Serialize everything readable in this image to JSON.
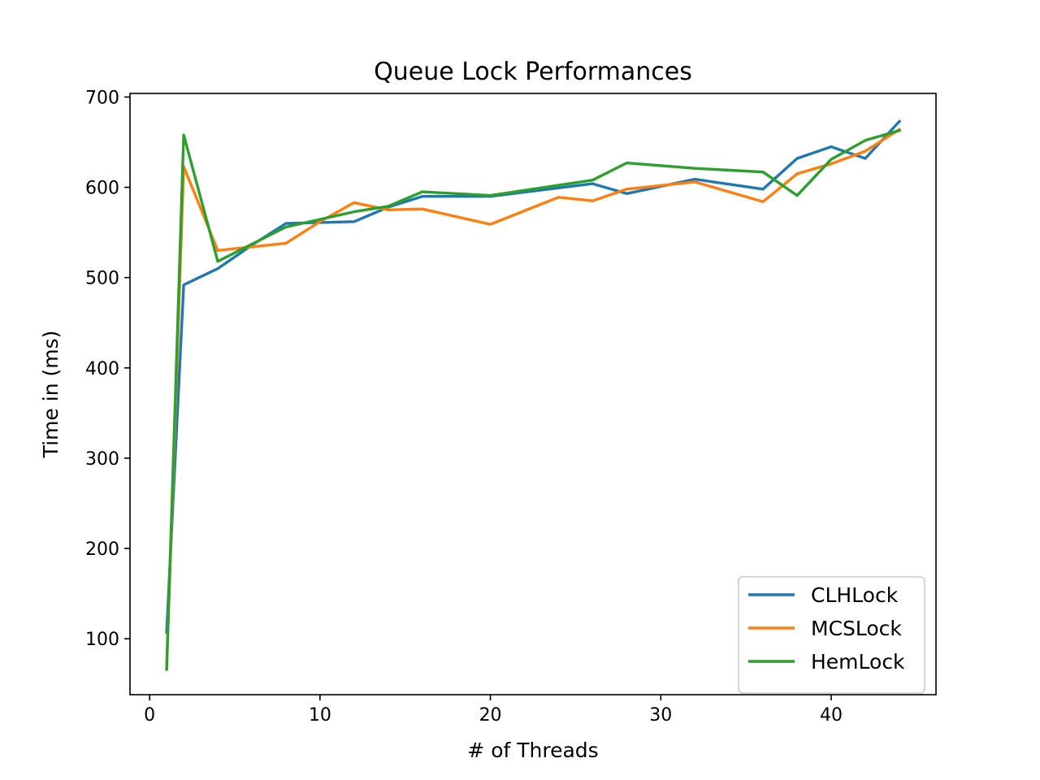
{
  "chart_data": {
    "type": "line",
    "title": "Queue Lock Performances",
    "xlabel": "# of Threads",
    "ylabel": "Time in (ms)",
    "xlim": [
      -1.15,
      46.15
    ],
    "ylim": [
      38,
      704
    ],
    "xticks": [
      0,
      10,
      20,
      30,
      40
    ],
    "yticks": [
      100,
      200,
      300,
      400,
      500,
      600,
      700
    ],
    "grid": false,
    "legend_position": "lower-right",
    "series": [
      {
        "name": "CLHLock",
        "color": "#1f77b4",
        "x": [
          1,
          2,
          4,
          6,
          8,
          10,
          12,
          14,
          16,
          20,
          26,
          28,
          32,
          36,
          38,
          40,
          42,
          44
        ],
        "y": [
          107,
          492,
          510,
          536,
          560,
          561,
          562,
          578,
          590,
          590,
          604,
          593,
          609,
          598,
          632,
          645,
          632,
          673
        ]
      },
      {
        "name": "MCSLock",
        "color": "#ff7f0e",
        "x": [
          1,
          2,
          4,
          8,
          10,
          12,
          14,
          16,
          20,
          24,
          26,
          28,
          32,
          36,
          38,
          40,
          42,
          44
        ],
        "y": [
          67,
          623,
          530,
          538,
          562,
          583,
          575,
          576,
          559,
          589,
          585,
          598,
          606,
          584,
          615,
          626,
          640,
          664
        ]
      },
      {
        "name": "HemLock",
        "color": "#2ca02c",
        "x": [
          1,
          2,
          4,
          8,
          12,
          14,
          16,
          20,
          26,
          28,
          32,
          36,
          38,
          40,
          42,
          44
        ],
        "y": [
          66,
          658,
          518,
          556,
          573,
          579,
          595,
          591,
          608,
          627,
          621,
          617,
          591,
          631,
          652,
          663
        ]
      }
    ]
  }
}
